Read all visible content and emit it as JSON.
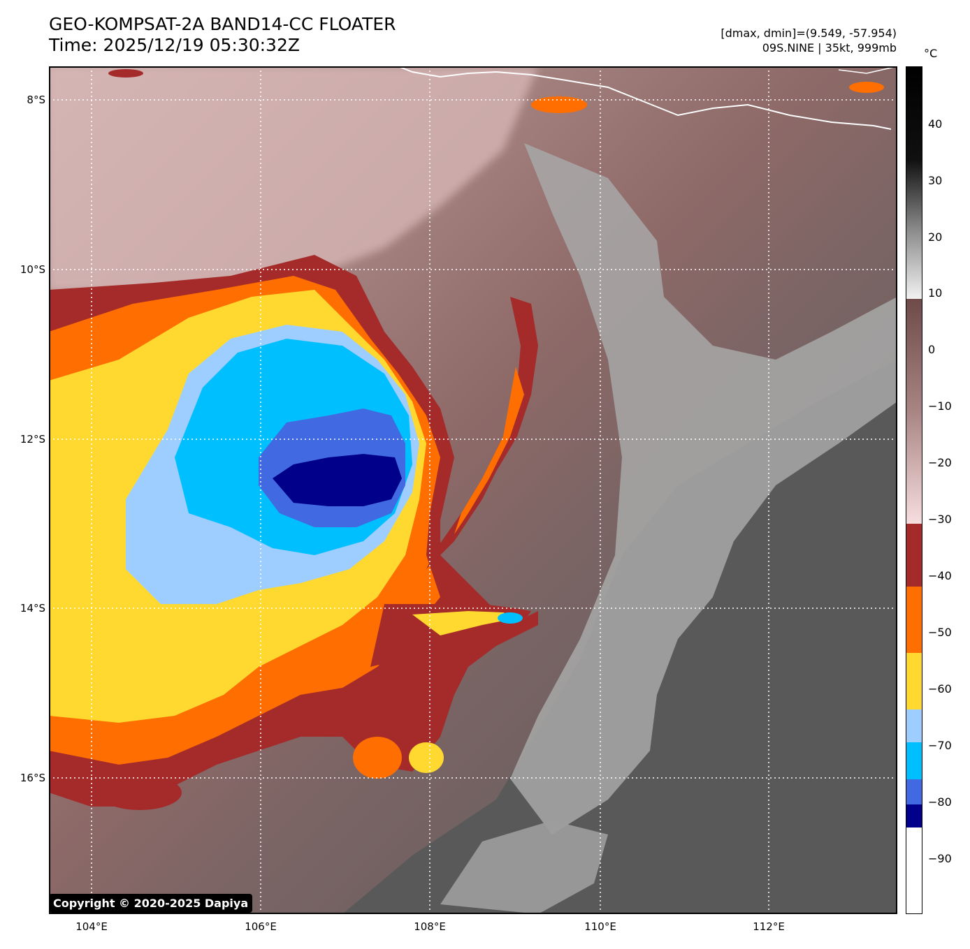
{
  "header": {
    "title": "GEO-KOMPSAT-2A BAND14-CC FLOATER",
    "time": "Time: 2025/12/19 05:30:32Z",
    "range": "[dmax, dmin]=(9.549, -57.954)",
    "storm": "09S.NINE | 35kt, 999mb"
  },
  "colorbar": {
    "unit": "°C",
    "ticks": [
      "40",
      "30",
      "20",
      "10",
      "0",
      "−10",
      "−20",
      "−30",
      "−40",
      "−50",
      "−60",
      "−70",
      "−80",
      "−90"
    ],
    "bands": [
      {
        "range": "> 10",
        "color": "gray-to-black"
      },
      {
        "range": "10 to -30",
        "color": "pink-brown"
      },
      {
        "range": "-30 to -40",
        "color": "#a52a2a"
      },
      {
        "range": "-40 to -50",
        "color": "#ff6e00"
      },
      {
        "range": "-50 to -60",
        "color": "#ffd92f"
      },
      {
        "range": "-60 to -70",
        "color": "#9ecdff"
      },
      {
        "range": "-70 to -80",
        "color": "#00bfff"
      },
      {
        "range": "-80 to -85",
        "color": "#4169e1"
      },
      {
        "range": "-85 to -90",
        "color": "#00008b"
      },
      {
        "range": "< -90",
        "color": "#ffffff"
      }
    ]
  },
  "map": {
    "lat_labels": [
      "8°S",
      "10°S",
      "12°S",
      "14°S",
      "16°S"
    ],
    "lon_labels": [
      "104°E",
      "106°E",
      "108°E",
      "110°E",
      "112°E"
    ],
    "copyright": "Copyright © 2020-2025 Dapiya"
  }
}
